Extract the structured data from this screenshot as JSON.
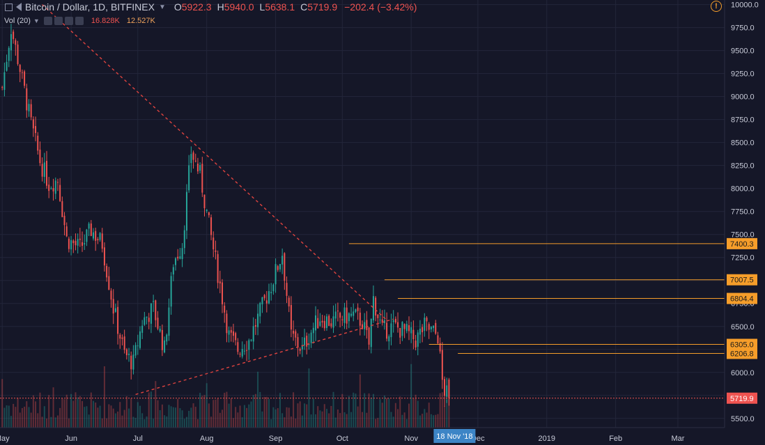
{
  "header": {
    "symbol": "Bitcoin / Dollar, 1D, BITFINEX",
    "open_label": "O",
    "open": "5922.3",
    "high_label": "H",
    "high": "5940.0",
    "low_label": "L",
    "low": "5638.1",
    "close_label": "C",
    "close": "5719.9",
    "change": "−202.4 (−3.42%)"
  },
  "volume": {
    "label": "Vol (20)",
    "value": "16.828K",
    "ma": "12.527K"
  },
  "colors": {
    "background": "#151728",
    "up": "#26a69a",
    "down": "#ef5350",
    "level": "#f59d2a",
    "trendline": "#e0433f",
    "axis_text": "#c8cbd8"
  },
  "chart_data": {
    "type": "candlestick",
    "grid": true,
    "y_range": [
      5400,
      10050
    ],
    "y_ticks": [
      "10000.0",
      "9750.0",
      "9500.0",
      "9250.0",
      "9000.0",
      "8750.0",
      "8500.0",
      "8250.0",
      "8000.0",
      "7750.0",
      "7500.0",
      "7250.0",
      "7000.0",
      "6750.0",
      "6500.0",
      "6250.0",
      "6000.0",
      "5750.0",
      "5500.0"
    ],
    "x_ticks": [
      "May",
      "Jun",
      "Jul",
      "Aug",
      "Sep",
      "Oct",
      "Nov",
      "Dec",
      "2019",
      "Feb",
      "Mar"
    ],
    "x_range": [
      "2018-04-30",
      "2019-03-22"
    ],
    "x_tick_dates": [
      "2018-05-01",
      "2018-06-01",
      "2018-07-01",
      "2018-08-01",
      "2018-09-01",
      "2018-10-01",
      "2018-11-01",
      "2018-12-01",
      "2019-01-01",
      "2019-02-01",
      "2019-03-01"
    ],
    "last_date": "2018-11-18",
    "date_marker": "18 Nov '18",
    "close_series": [
      {
        "date": "2018-05-01",
        "close": 9100
      },
      {
        "date": "2018-05-05",
        "close": 9750
      },
      {
        "date": "2018-05-09",
        "close": 9300
      },
      {
        "date": "2018-05-14",
        "close": 8700
      },
      {
        "date": "2018-05-18",
        "close": 8300
      },
      {
        "date": "2018-05-22",
        "close": 8050
      },
      {
        "date": "2018-05-26",
        "close": 8100
      },
      {
        "date": "2018-05-30",
        "close": 7450
      },
      {
        "date": "2018-06-05",
        "close": 7350
      },
      {
        "date": "2018-06-10",
        "close": 7550
      },
      {
        "date": "2018-06-15",
        "close": 7400
      },
      {
        "date": "2018-06-20",
        "close": 6700
      },
      {
        "date": "2018-06-25",
        "close": 6200
      },
      {
        "date": "2018-06-29",
        "close": 6100
      },
      {
        "date": "2018-07-03",
        "close": 6550
      },
      {
        "date": "2018-07-08",
        "close": 6700
      },
      {
        "date": "2018-07-13",
        "close": 6250
      },
      {
        "date": "2018-07-17",
        "close": 7200
      },
      {
        "date": "2018-07-21",
        "close": 7400
      },
      {
        "date": "2018-07-25",
        "close": 8400
      },
      {
        "date": "2018-07-29",
        "close": 8150
      },
      {
        "date": "2018-08-02",
        "close": 7600
      },
      {
        "date": "2018-08-07",
        "close": 6950
      },
      {
        "date": "2018-08-11",
        "close": 6400
      },
      {
        "date": "2018-08-15",
        "close": 6250
      },
      {
        "date": "2018-08-20",
        "close": 6350
      },
      {
        "date": "2018-08-25",
        "close": 6650
      },
      {
        "date": "2018-08-30",
        "close": 6950
      },
      {
        "date": "2018-09-04",
        "close": 7300
      },
      {
        "date": "2018-09-08",
        "close": 6400
      },
      {
        "date": "2018-09-13",
        "close": 6250
      },
      {
        "date": "2018-09-17",
        "close": 6450
      },
      {
        "date": "2018-09-21",
        "close": 6600
      },
      {
        "date": "2018-09-26",
        "close": 6550
      },
      {
        "date": "2018-10-01",
        "close": 6600
      },
      {
        "date": "2018-10-06",
        "close": 6620
      },
      {
        "date": "2018-10-10",
        "close": 6550
      },
      {
        "date": "2018-10-13",
        "close": 6300
      },
      {
        "date": "2018-10-15",
        "close": 6800
      },
      {
        "date": "2018-10-19",
        "close": 6450
      },
      {
        "date": "2018-10-24",
        "close": 6500
      },
      {
        "date": "2018-10-29",
        "close": 6450
      },
      {
        "date": "2018-11-03",
        "close": 6350
      },
      {
        "date": "2018-11-07",
        "close": 6500
      },
      {
        "date": "2018-11-10",
        "close": 6450
      },
      {
        "date": "2018-11-13",
        "close": 6400
      },
      {
        "date": "2018-11-14",
        "close": 6150
      },
      {
        "date": "2018-11-15",
        "close": 5900
      },
      {
        "date": "2018-11-16",
        "close": 5800
      },
      {
        "date": "2018-11-18",
        "close": 5719.9
      }
    ],
    "price_levels": [
      {
        "value": 7400.3,
        "label": "7400.3",
        "from_date": "2018-10-04"
      },
      {
        "value": 7007.5,
        "label": "7007.5",
        "from_date": "2018-10-20"
      },
      {
        "value": 6804.4,
        "label": "6804.4",
        "from_date": "2018-10-26"
      },
      {
        "value": 6305.0,
        "label": "6305.0",
        "from_date": "2018-11-09"
      },
      {
        "value": 6206.8,
        "label": "6206.8",
        "from_date": "2018-11-22"
      }
    ],
    "current_price": {
      "value": 5719.9,
      "label": "5719.9"
    },
    "trendlines": [
      {
        "from": {
          "date": "2018-05-19",
          "price": 10000
        },
        "to": {
          "date": "2018-10-21",
          "price": 6570
        }
      },
      {
        "from": {
          "date": "2018-06-30",
          "price": 5760
        },
        "to": {
          "date": "2018-10-24",
          "price": 6580
        }
      }
    ]
  }
}
